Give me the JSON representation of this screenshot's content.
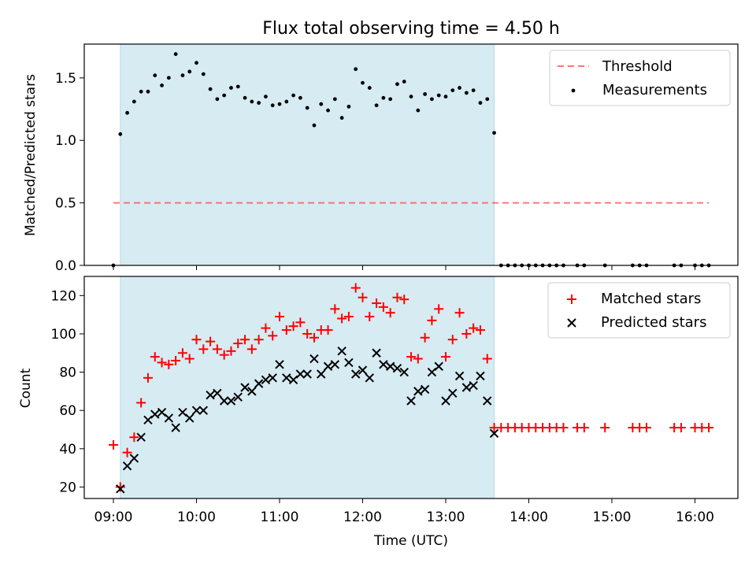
{
  "title": "Flux total observing time = 4.50 h",
  "colors": {
    "shade": "#add8e6",
    "threshold": "#ff5555",
    "matched": "#ff0000",
    "predicted": "#000000",
    "measurement": "#000000"
  },
  "chart_data": [
    {
      "type": "scatter",
      "panel": "top",
      "ylabel": "Matched/Predicted stars",
      "xlabel": "",
      "ylim": [
        0,
        1.77
      ],
      "yticks": [
        "0.0",
        "0.5",
        "1.0",
        "1.5"
      ],
      "shaded_interval": [
        "09:05",
        "13:35"
      ],
      "legend_position": "upper right",
      "legend": [
        "Threshold",
        "Measurements"
      ],
      "threshold": {
        "name": "Threshold",
        "y": 0.5,
        "x_range": [
          "09:00",
          "16:10"
        ]
      },
      "series": [
        {
          "name": "Measurements",
          "x": [
            "09:00",
            "09:05",
            "09:10",
            "09:15",
            "09:20",
            "09:25",
            "09:30",
            "09:35",
            "09:40",
            "09:45",
            "09:50",
            "09:55",
            "10:00",
            "10:05",
            "10:10",
            "10:15",
            "10:20",
            "10:25",
            "10:30",
            "10:35",
            "10:40",
            "10:45",
            "10:50",
            "10:55",
            "11:00",
            "11:05",
            "11:10",
            "11:15",
            "11:20",
            "11:25",
            "11:30",
            "11:35",
            "11:40",
            "11:45",
            "11:50",
            "11:55",
            "12:00",
            "12:05",
            "12:10",
            "12:15",
            "12:20",
            "12:25",
            "12:30",
            "12:35",
            "12:40",
            "12:45",
            "12:50",
            "12:55",
            "13:00",
            "13:05",
            "13:10",
            "13:15",
            "13:20",
            "13:25",
            "13:30",
            "13:35",
            "13:40",
            "13:45",
            "13:50",
            "13:55",
            "14:00",
            "14:05",
            "14:10",
            "14:15",
            "14:20",
            "14:25",
            "14:35",
            "14:40",
            "14:55",
            "15:15",
            "15:20",
            "15:25",
            "15:45",
            "15:50",
            "16:00",
            "16:05",
            "16:10"
          ],
          "y": [
            0,
            1.05,
            1.22,
            1.31,
            1.39,
            1.39,
            1.52,
            1.44,
            1.5,
            1.69,
            1.52,
            1.55,
            1.62,
            1.53,
            1.41,
            1.33,
            1.36,
            1.42,
            1.43,
            1.34,
            1.31,
            1.3,
            1.35,
            1.28,
            1.29,
            1.31,
            1.36,
            1.34,
            1.26,
            1.12,
            1.29,
            1.24,
            1.33,
            1.18,
            1.27,
            1.57,
            1.46,
            1.42,
            1.28,
            1.34,
            1.33,
            1.45,
            1.47,
            1.35,
            1.24,
            1.37,
            1.33,
            1.36,
            1.35,
            1.4,
            1.42,
            1.38,
            1.4,
            1.3,
            1.33,
            1.06,
            0,
            0,
            0,
            0,
            0,
            0,
            0,
            0,
            0,
            0,
            0,
            0,
            0,
            0,
            0,
            0,
            0,
            0,
            0,
            0,
            0
          ]
        }
      ]
    },
    {
      "type": "scatter",
      "panel": "bottom",
      "ylabel": "Count",
      "xlabel": "Time (UTC)",
      "ylim": [
        14,
        130
      ],
      "yticks": [
        "20",
        "40",
        "60",
        "80",
        "100",
        "120"
      ],
      "xticks": [
        "09:00",
        "10:00",
        "11:00",
        "12:00",
        "13:00",
        "14:00",
        "15:00",
        "16:00"
      ],
      "shaded_interval": [
        "09:05",
        "13:35"
      ],
      "legend_position": "upper right",
      "legend": [
        "Matched stars",
        "Predicted stars"
      ],
      "series": [
        {
          "name": "Matched stars",
          "x": [
            "09:00",
            "09:05",
            "09:10",
            "09:15",
            "09:20",
            "09:25",
            "09:30",
            "09:35",
            "09:40",
            "09:45",
            "09:50",
            "09:55",
            "10:00",
            "10:05",
            "10:10",
            "10:15",
            "10:20",
            "10:25",
            "10:30",
            "10:35",
            "10:40",
            "10:45",
            "10:50",
            "10:55",
            "11:00",
            "11:05",
            "11:10",
            "11:15",
            "11:20",
            "11:25",
            "11:30",
            "11:35",
            "11:40",
            "11:45",
            "11:50",
            "11:55",
            "12:00",
            "12:05",
            "12:10",
            "12:15",
            "12:20",
            "12:25",
            "12:30",
            "12:35",
            "12:40",
            "12:45",
            "12:50",
            "12:55",
            "13:00",
            "13:05",
            "13:10",
            "13:15",
            "13:20",
            "13:25",
            "13:30",
            "13:35",
            "13:40",
            "13:45",
            "13:50",
            "13:55",
            "14:00",
            "14:05",
            "14:10",
            "14:15",
            "14:20",
            "14:25",
            "14:35",
            "14:40",
            "14:55",
            "15:15",
            "15:20",
            "15:25",
            "15:45",
            "15:50",
            "16:00",
            "16:05",
            "16:10"
          ],
          "y": [
            42,
            20,
            38,
            46,
            64,
            77,
            88,
            85,
            84,
            86,
            90,
            87,
            97,
            92,
            96,
            92,
            89,
            91,
            95,
            97,
            92,
            97,
            103,
            99,
            109,
            102,
            104,
            106,
            100,
            98,
            102,
            102,
            113,
            108,
            109,
            124,
            119,
            109,
            116,
            114,
            111,
            119,
            118,
            88,
            87,
            98,
            107,
            113,
            88,
            97,
            111,
            100,
            103,
            102,
            87,
            51,
            51,
            51,
            51,
            51,
            51,
            51,
            51,
            51,
            51,
            51,
            51,
            51,
            51,
            51,
            51,
            51,
            51,
            51,
            51,
            51,
            51
          ]
        },
        {
          "name": "Predicted stars",
          "x": [
            "09:05",
            "09:10",
            "09:15",
            "09:20",
            "09:25",
            "09:30",
            "09:35",
            "09:40",
            "09:45",
            "09:50",
            "09:55",
            "10:00",
            "10:05",
            "10:10",
            "10:15",
            "10:20",
            "10:25",
            "10:30",
            "10:35",
            "10:40",
            "10:45",
            "10:50",
            "10:55",
            "11:00",
            "11:05",
            "11:10",
            "11:15",
            "11:20",
            "11:25",
            "11:30",
            "11:35",
            "11:40",
            "11:45",
            "11:50",
            "11:55",
            "12:00",
            "12:05",
            "12:10",
            "12:15",
            "12:20",
            "12:25",
            "12:30",
            "12:35",
            "12:40",
            "12:45",
            "12:50",
            "12:55",
            "13:00",
            "13:05",
            "13:10",
            "13:15",
            "13:20",
            "13:25",
            "13:30",
            "13:35"
          ],
          "y": [
            19,
            31,
            35,
            46,
            55,
            58,
            59,
            56,
            51,
            59,
            56,
            60,
            60,
            68,
            69,
            65,
            65,
            67,
            72,
            70,
            74,
            76,
            77,
            84,
            77,
            76,
            79,
            79,
            87,
            79,
            83,
            84,
            91,
            85,
            79,
            81,
            77,
            90,
            84,
            83,
            82,
            80,
            65,
            70,
            71,
            80,
            83,
            65,
            69,
            78,
            72,
            73,
            78,
            65,
            48
          ]
        }
      ]
    }
  ]
}
